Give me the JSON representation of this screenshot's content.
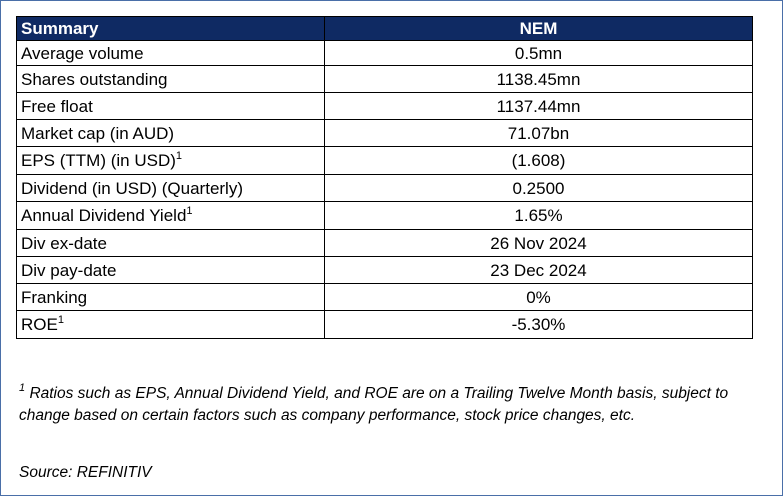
{
  "table": {
    "header": {
      "label": "Summary",
      "ticker": "NEM"
    },
    "rows": [
      {
        "label": "Average volume",
        "note": "",
        "value": "0.5mn"
      },
      {
        "label": "Shares outstanding",
        "note": "",
        "value": "1138.45mn"
      },
      {
        "label": "Free float",
        "note": "",
        "value": "1137.44mn"
      },
      {
        "label": "Market cap (in AUD)",
        "note": "",
        "value": "71.07bn"
      },
      {
        "label": "EPS (TTM) (in USD)",
        "note": "1",
        "value": "(1.608)"
      },
      {
        "label": "Dividend (in USD) (Quarterly)",
        "note": "",
        "value": "0.2500"
      },
      {
        "label": "Annual Dividend Yield",
        "note": "1",
        "value": "1.65%"
      },
      {
        "label": "Div ex-date",
        "note": "",
        "value": "26 Nov 2024"
      },
      {
        "label": "Div pay-date",
        "note": "",
        "value": "23 Dec 2024"
      },
      {
        "label": "Franking",
        "note": "",
        "value": "0%"
      },
      {
        "label": "ROE",
        "note": "1",
        "value": "-5.30%"
      }
    ]
  },
  "footnote": {
    "marker": "1",
    "text": "Ratios such as EPS, Annual Dividend Yield, and ROE are on a Trailing Twelve Month basis, subject to change based on certain factors such as company performance, stock price changes, etc."
  },
  "source": "Source: REFINITIV"
}
